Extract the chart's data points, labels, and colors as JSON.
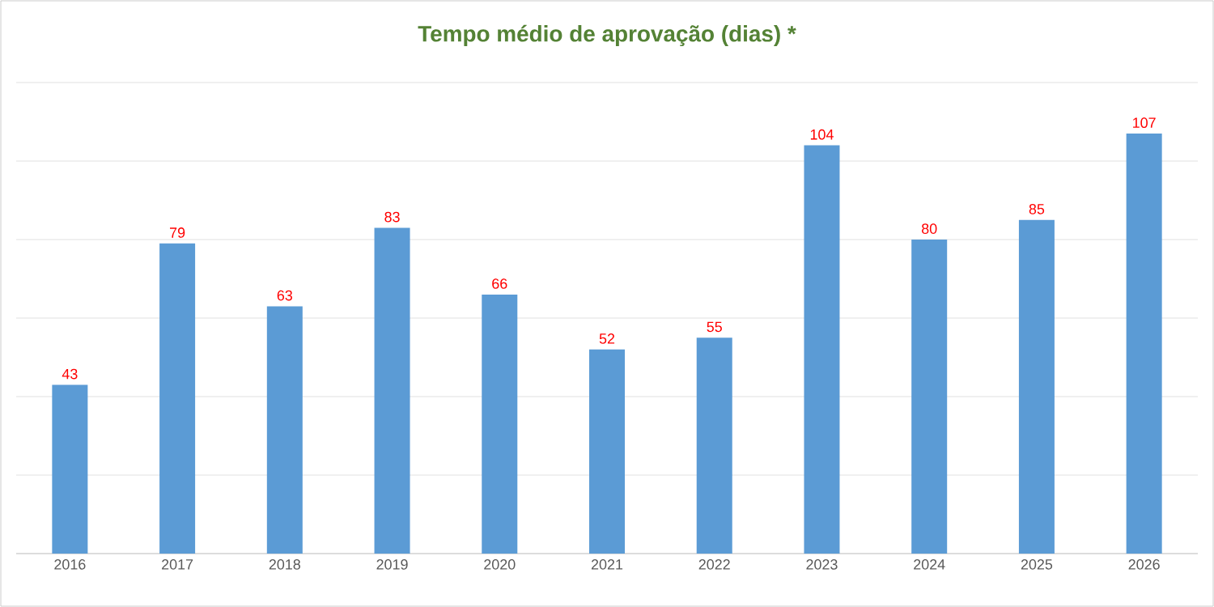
{
  "chart_data": {
    "type": "bar",
    "title": "Tempo médio de aprovação (dias) *",
    "categories": [
      "2016",
      "2017",
      "2018",
      "2019",
      "2020",
      "2021",
      "2022",
      "2023",
      "2024",
      "2025",
      "2026"
    ],
    "values": [
      43,
      79,
      63,
      83,
      66,
      52,
      55,
      104,
      80,
      85,
      107
    ],
    "color": "#5b9bd5",
    "data_labels": true,
    "ylim": [
      0,
      120
    ],
    "yticks": [
      {
        "value": 0,
        "label": null
      },
      {
        "value": 20,
        "label": null
      },
      {
        "value": 40,
        "label": null
      },
      {
        "value": 60,
        "label": null
      },
      {
        "value": 80,
        "label": null
      },
      {
        "value": 100,
        "label": null
      },
      {
        "value": 120,
        "label": null
      }
    ],
    "grid": "y",
    "tick_labels": "x"
  }
}
